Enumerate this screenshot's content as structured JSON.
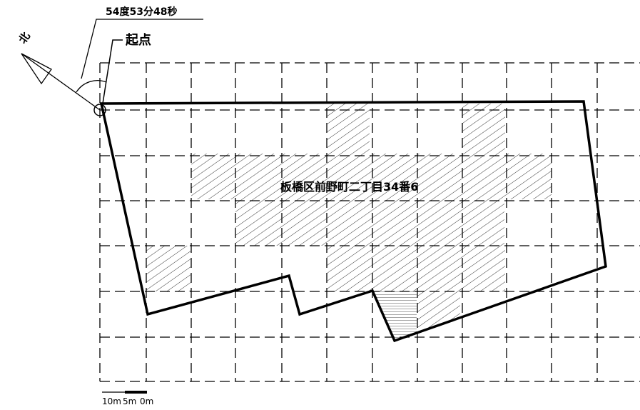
{
  "angle_label": "54度53分48秒",
  "origin_label": "起点",
  "north_label": "北",
  "parcel_label": "板橋区前野町二丁目34番6",
  "scale": {
    "ticks": [
      "10m",
      "5m",
      "0m"
    ]
  }
}
